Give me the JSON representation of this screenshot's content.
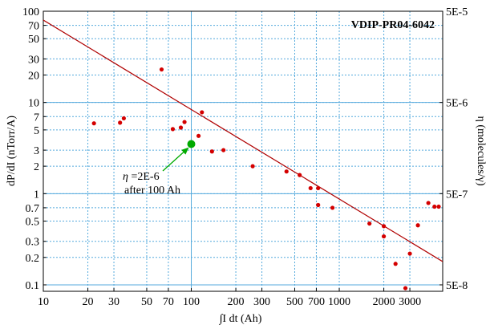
{
  "chart_data": {
    "type": "scatter",
    "title": "",
    "xlabel": "∫I dt (Ah)",
    "ylabel": "dP/dI (nTorr/A)",
    "y2label": "η (molecules/γ)",
    "xscale": "log",
    "yscale": "log",
    "xlim": [
      10,
      5000
    ],
    "ylim": [
      0.085,
      100
    ],
    "grid": true,
    "id_label": "VDIP-PR04-6042",
    "x_ticks": [
      10,
      20,
      30,
      50,
      70,
      100,
      200,
      300,
      500,
      700,
      1000,
      2000,
      3000
    ],
    "x_tick_labels": [
      "10",
      "20",
      "30",
      "50",
      "70",
      "100",
      "200",
      "300",
      "500",
      "700",
      "1000",
      "2000",
      "3000"
    ],
    "y_ticks": [
      0.1,
      0.2,
      0.3,
      0.5,
      0.7,
      1,
      2,
      3,
      5,
      7,
      10,
      20,
      30,
      50,
      70,
      100
    ],
    "y_tick_labels": [
      "0.1",
      "0.2",
      "0.3",
      "0.5",
      "0.7",
      "1",
      "2",
      "3",
      "5",
      "7",
      "10",
      "20",
      "30",
      "50",
      "70",
      "100"
    ],
    "y2_ticks": [
      {
        "label": "5E-5",
        "at_y": 100
      },
      {
        "label": "5E-6",
        "at_y": 10
      },
      {
        "label": "5E-7",
        "at_y": 1
      },
      {
        "label": "5E-8",
        "at_y": 0.1
      }
    ],
    "series": [
      {
        "kind": "points",
        "color": "#d40000",
        "points": [
          [
            22,
            5.9
          ],
          [
            33,
            6.0
          ],
          [
            35,
            6.7
          ],
          [
            63,
            23
          ],
          [
            75,
            5.1
          ],
          [
            85,
            5.3
          ],
          [
            90,
            6.1
          ],
          [
            112,
            4.3
          ],
          [
            118,
            7.8
          ],
          [
            138,
            2.9
          ],
          [
            165,
            3.0
          ],
          [
            260,
            2.0
          ],
          [
            440,
            1.75
          ],
          [
            540,
            1.6
          ],
          [
            640,
            1.15
          ],
          [
            720,
            1.15
          ],
          [
            720,
            0.75
          ],
          [
            900,
            0.7
          ],
          [
            1600,
            0.47
          ],
          [
            2000,
            0.44
          ],
          [
            2000,
            0.34
          ],
          [
            2400,
            0.17
          ],
          [
            2800,
            0.092
          ],
          [
            3000,
            0.22
          ],
          [
            3400,
            0.45
          ],
          [
            4000,
            0.79
          ],
          [
            4400,
            0.72
          ],
          [
            4700,
            0.72
          ]
        ]
      },
      {
        "kind": "fit-line",
        "color": "#b00000",
        "points": [
          [
            10,
            80
          ],
          [
            5000,
            0.18
          ]
        ]
      },
      {
        "kind": "highlight",
        "color": "#00aa00",
        "points": [
          [
            100,
            3.5
          ]
        ]
      }
    ],
    "annotation": {
      "prefix": "η",
      "value": " =2E-6",
      "line2": "after 100 Ah",
      "color": "#00aa00",
      "anchor_x": 100,
      "anchor_y": 3.5
    },
    "colors": {
      "grid": "#55aadd",
      "frame": "#000000"
    }
  }
}
